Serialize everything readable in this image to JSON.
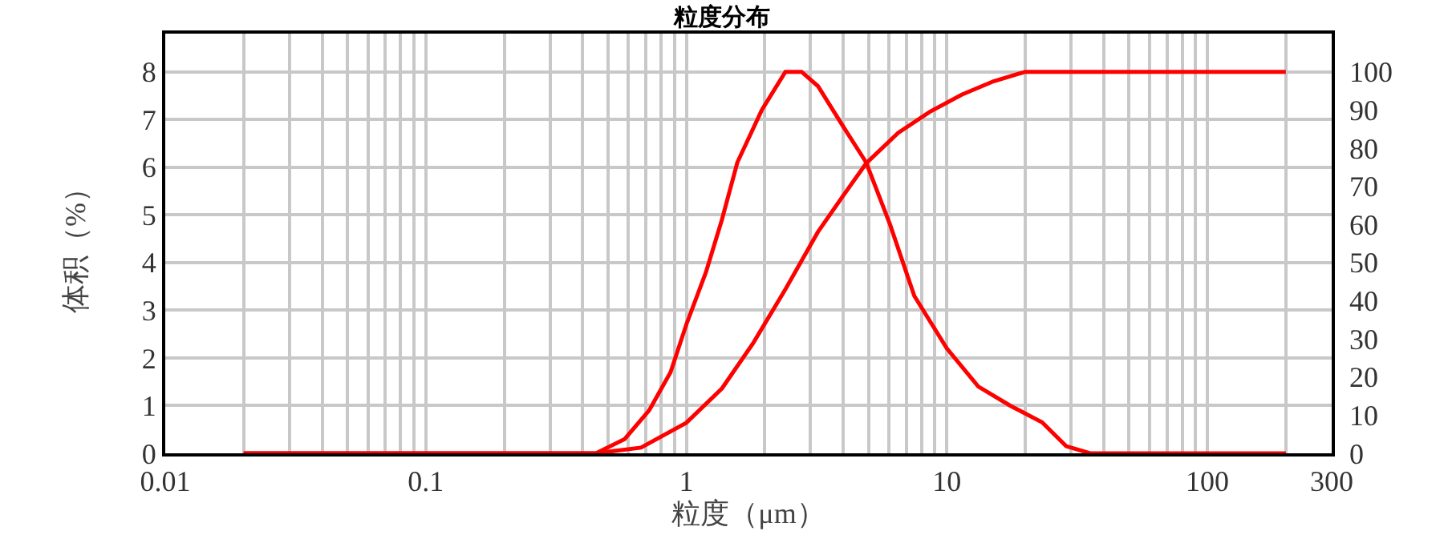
{
  "chart_data": {
    "type": "line",
    "title": "粒度分布",
    "xlabel": "粒度（μm）",
    "ylabel": "体积（%）",
    "log": "x",
    "grid": true,
    "marker": "none",
    "line_style": "solid",
    "xlim": [
      0.01,
      300
    ],
    "xticks": [
      0.01,
      0.1,
      1,
      10,
      100,
      300
    ],
    "ylim": [
      0,
      8.8
    ],
    "yticks": [
      0,
      1,
      2,
      3,
      4,
      5,
      6,
      7,
      8
    ],
    "y2lim": [
      0,
      110
    ],
    "y2ticks": [
      0,
      10,
      20,
      30,
      40,
      50,
      60,
      70,
      80,
      90,
      100
    ],
    "series": [
      {
        "color": "#ff0000",
        "x": [
          0.02,
          0.45,
          0.58,
          0.72,
          0.87,
          1,
          1.19,
          1.37,
          1.57,
          1.95,
          2.4,
          2.77,
          3.2,
          3.95,
          4.9,
          6.05,
          7.5,
          10,
          13.2,
          17.5,
          23.2,
          28.7,
          35.5,
          200
        ],
        "values": [
          0,
          0,
          0.3,
          0.9,
          1.7,
          2.7,
          3.8,
          4.9,
          6.1,
          7.2,
          8.0,
          8.0,
          7.7,
          6.9,
          6.1,
          4.8,
          3.3,
          2.2,
          1.4,
          1.0,
          0.65,
          0.15,
          0,
          0
        ]
      },
      {
        "color": "#ff0000",
        "axis": "y2",
        "x": [
          0.02,
          0.45,
          0.67,
          1,
          1.37,
          1.81,
          2.4,
          3.2,
          3.95,
          4.9,
          6.5,
          8.6,
          11.4,
          15.1,
          20,
          200
        ],
        "values": [
          0,
          0,
          1.5,
          8,
          17,
          29,
          43,
          58,
          67,
          76,
          84,
          89.5,
          94,
          97.5,
          100,
          100
        ]
      }
    ]
  }
}
